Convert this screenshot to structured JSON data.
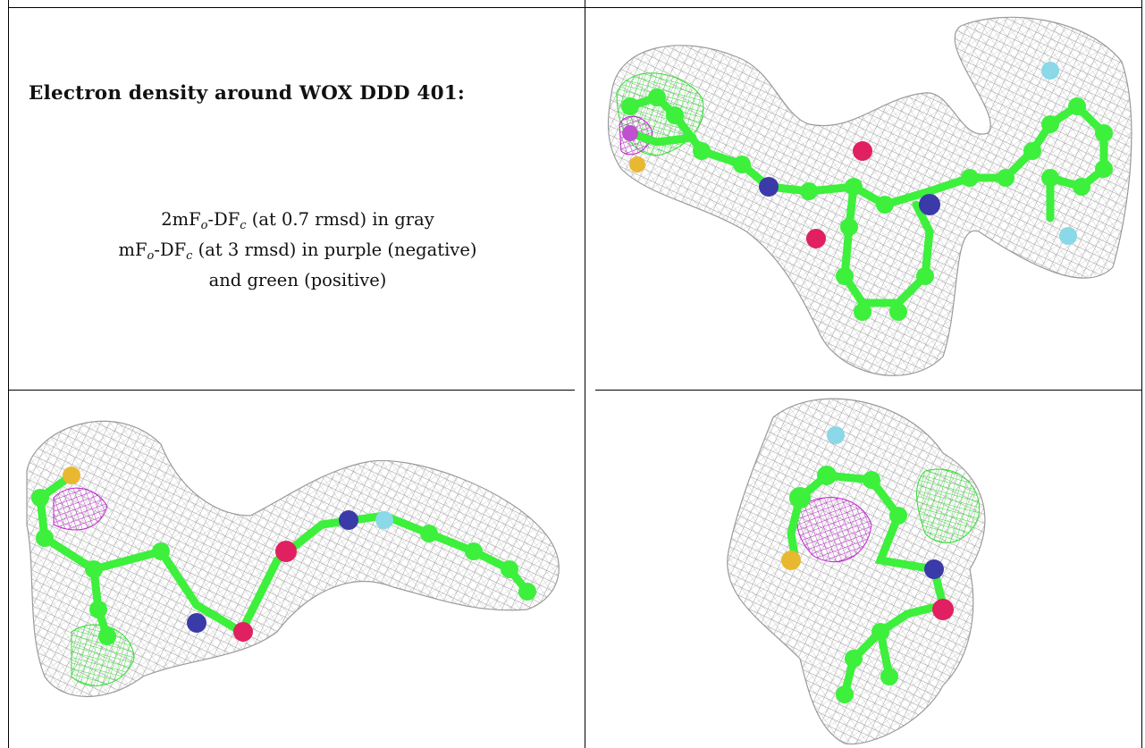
{
  "heading": "Electron density around WOX DDD 401:",
  "legend": {
    "line1": {
      "pre": "2mF",
      "s1": "o",
      "mid": "-DF",
      "s2": "c",
      "post": " (at 0.7 rmsd) in gray"
    },
    "line2": {
      "pre": "mF",
      "s1": "o",
      "mid": "-DF",
      "s2": "c",
      "post": " (at 3 rmsd) in purple (negative)"
    },
    "line3": "and green (positive)"
  },
  "colors": {
    "mesh_2fofc": "#9a9a9a",
    "mesh_negative": "#c020d0",
    "mesh_positive": "#2ee02e",
    "carbon": "#3cf03c",
    "nitrogen": "#3a3aa8",
    "oxygen": "#e02060",
    "sulfur": "#e8b830",
    "fluorine": "#8ad8e8"
  },
  "panels": [
    {
      "view": "top-right"
    },
    {
      "view": "bottom-left"
    },
    {
      "view": "bottom-right"
    }
  ]
}
